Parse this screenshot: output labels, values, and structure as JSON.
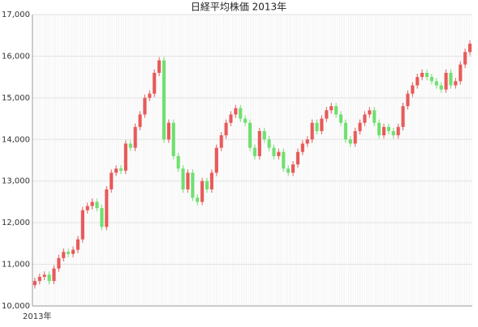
{
  "chart_data": {
    "type": "candlestick",
    "title": "日経平均株価 2013年",
    "xlabel": "2013年",
    "ylim": [
      10000,
      17000
    ],
    "yticks": [
      {
        "value": 10000,
        "label": "10,000"
      },
      {
        "value": 11000,
        "label": "11,000"
      },
      {
        "value": 12000,
        "label": "12,000"
      },
      {
        "value": 13000,
        "label": "13,000"
      },
      {
        "value": 14000,
        "label": "14,000"
      },
      {
        "value": 15000,
        "label": "15,000"
      },
      {
        "value": 16000,
        "label": "16,000"
      },
      {
        "value": 17000,
        "label": "17,000"
      }
    ],
    "grid": true,
    "up_color": "#e85a5a",
    "down_color": "#6fe06f",
    "open": [
      10500,
      10600,
      10700,
      10750,
      10600,
      10900,
      11150,
      11300,
      11250,
      11350,
      11600,
      12300,
      12400,
      12500,
      12350,
      11900,
      12800,
      13200,
      13300,
      13250,
      13900,
      13800,
      14300,
      14600,
      15000,
      15100,
      15600,
      15900,
      14000,
      14400,
      13600,
      13300,
      12800,
      13200,
      12600,
      12500,
      13000,
      12800,
      13200,
      13800,
      14100,
      14400,
      14600,
      14750,
      14500,
      14400,
      13800,
      13600,
      14200,
      14000,
      13800,
      13600,
      13700,
      13300,
      13200,
      13400,
      13700,
      13900,
      14000,
      14400,
      14200,
      14500,
      14700,
      14800,
      14600,
      14400,
      14000,
      13900,
      14200,
      14400,
      14600,
      14700,
      14400,
      14100,
      14300,
      14200,
      14100,
      14300,
      14800,
      15100,
      15300,
      15500,
      15600,
      15500,
      15400,
      15300,
      15200,
      15600,
      15300,
      15400,
      15800,
      16100
    ],
    "high": [
      10680,
      10780,
      10830,
      10830,
      10980,
      11230,
      11380,
      11380,
      11430,
      11680,
      12380,
      12480,
      12580,
      12580,
      12430,
      12880,
      13280,
      13380,
      13380,
      13980,
      13980,
      14380,
      14680,
      15080,
      15180,
      15680,
      15980,
      15980,
      14480,
      14480,
      13680,
      13380,
      13280,
      13280,
      12680,
      13080,
      13080,
      13280,
      13880,
      14180,
      14480,
      14680,
      14830,
      14830,
      14580,
      14480,
      13880,
      14280,
      14280,
      14080,
      13880,
      13780,
      13780,
      13380,
      13480,
      13780,
      13980,
      14080,
      14480,
      14480,
      14580,
      14780,
      14880,
      14880,
      14680,
      14480,
      14080,
      14280,
      14480,
      14680,
      14780,
      14780,
      14480,
      14380,
      14380,
      14280,
      14380,
      14880,
      15180,
      15380,
      15580,
      15680,
      15680,
      15580,
      15480,
      15380,
      15680,
      15680,
      15480,
      15880,
      16180,
      16380
    ],
    "low": [
      10420,
      10520,
      10620,
      10520,
      10520,
      10820,
      11070,
      11170,
      11170,
      11270,
      11520,
      12220,
      12320,
      12270,
      11820,
      11820,
      12720,
      13120,
      13170,
      13170,
      13720,
      13720,
      14220,
      14520,
      14920,
      15020,
      15520,
      13920,
      13920,
      13520,
      13220,
      12720,
      12720,
      12520,
      12420,
      12420,
      12720,
      12720,
      13120,
      13720,
      14020,
      14320,
      14520,
      14420,
      14320,
      13720,
      13520,
      13520,
      13920,
      13720,
      13520,
      13520,
      13220,
      13120,
      13120,
      13320,
      13620,
      13820,
      13920,
      14120,
      14120,
      14420,
      14620,
      14520,
      14320,
      13920,
      13820,
      13820,
      14120,
      14320,
      14520,
      14320,
      14020,
      14020,
      14120,
      14020,
      14020,
      14220,
      14720,
      15020,
      15220,
      15420,
      15420,
      15320,
      15220,
      15120,
      15120,
      15220,
      15220,
      15320,
      15720,
      16020
    ],
    "close": [
      10600,
      10700,
      10750,
      10600,
      10900,
      11150,
      11300,
      11250,
      11350,
      11600,
      12300,
      12400,
      12500,
      12350,
      11900,
      12800,
      13200,
      13300,
      13250,
      13900,
      13800,
      14300,
      14600,
      15000,
      15100,
      15600,
      15900,
      14000,
      14400,
      13600,
      13300,
      12800,
      13200,
      12600,
      12500,
      13000,
      12800,
      13200,
      13800,
      14100,
      14400,
      14600,
      14750,
      14500,
      14400,
      13800,
      13600,
      14200,
      14000,
      13800,
      13600,
      13700,
      13300,
      13200,
      13400,
      13700,
      13900,
      14000,
      14400,
      14200,
      14500,
      14700,
      14800,
      14600,
      14400,
      14000,
      13900,
      14200,
      14400,
      14600,
      14700,
      14400,
      14100,
      14300,
      14200,
      14100,
      14300,
      14800,
      15100,
      15300,
      15500,
      15600,
      15500,
      15400,
      15300,
      15200,
      15600,
      15300,
      15400,
      15800,
      16100,
      16300
    ]
  }
}
